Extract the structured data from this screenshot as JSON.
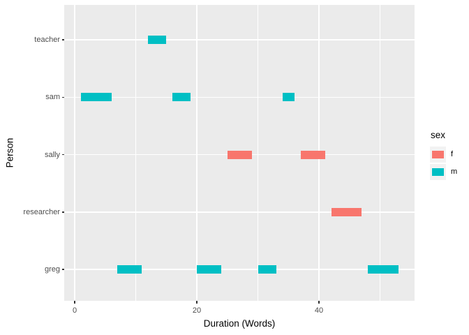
{
  "chart_data": {
    "type": "gantt-segment",
    "title": "",
    "xlabel": "Duration (Words)",
    "ylabel": "Person",
    "x_axis": {
      "major_ticks": [
        0,
        20,
        40
      ],
      "minor_ticks": [
        10,
        30,
        50
      ],
      "range": [
        -1.7,
        55.7
      ]
    },
    "y_categories": [
      "teacher",
      "sam",
      "sally",
      "researcher",
      "greg"
    ],
    "legend": {
      "title": "sex",
      "position": "right",
      "entries": [
        {
          "label": "f",
          "color": "#F8766D"
        },
        {
          "label": "m",
          "color": "#00BFC4"
        }
      ]
    },
    "segments": [
      {
        "person": "sam",
        "sex": "m",
        "start": 1,
        "end": 6
      },
      {
        "person": "greg",
        "sex": "m",
        "start": 7,
        "end": 11
      },
      {
        "person": "teacher",
        "sex": "m",
        "start": 12,
        "end": 15
      },
      {
        "person": "sam",
        "sex": "m",
        "start": 16,
        "end": 19
      },
      {
        "person": "greg",
        "sex": "m",
        "start": 20,
        "end": 24
      },
      {
        "person": "sally",
        "sex": "f",
        "start": 25,
        "end": 29
      },
      {
        "person": "greg",
        "sex": "m",
        "start": 30,
        "end": 33
      },
      {
        "person": "sam",
        "sex": "m",
        "start": 34,
        "end": 36
      },
      {
        "person": "sally",
        "sex": "f",
        "start": 37,
        "end": 41
      },
      {
        "person": "researcher",
        "sex": "f",
        "start": 42,
        "end": 47
      },
      {
        "person": "greg",
        "sex": "m",
        "start": 48,
        "end": 53
      }
    ],
    "colors": {
      "f": "#F8766D",
      "m": "#00BFC4",
      "panel_bg": "#EBEBEB",
      "gridline": "#FFFFFF",
      "tick_text": "#4D4D4D",
      "axis_title": "#000000",
      "legend_key_bg": "#F2F2F2"
    }
  }
}
